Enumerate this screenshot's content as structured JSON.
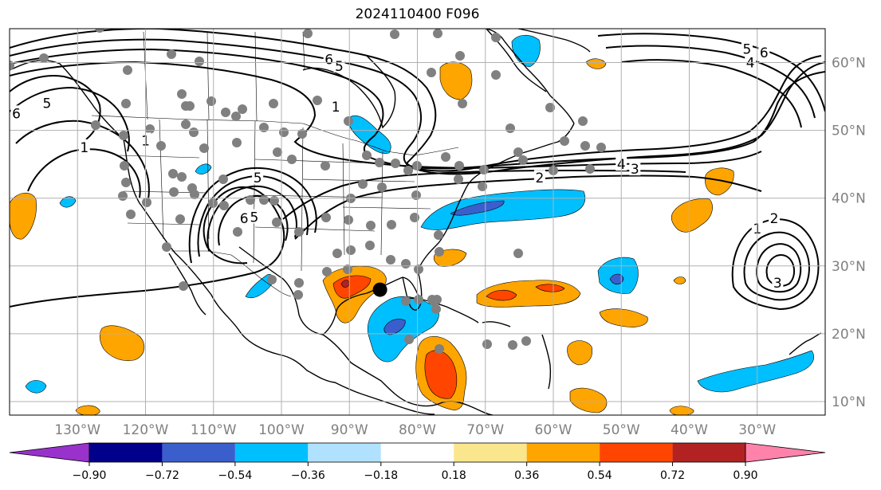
{
  "title": "2024110400 F096",
  "map": {
    "projection": "PlateCarree",
    "lon_range": [
      -140,
      -20
    ],
    "lat_range": [
      8,
      65
    ],
    "lon_ticks": [
      -130,
      -120,
      -110,
      -100,
      -90,
      -80,
      -70,
      -60,
      -50,
      -40,
      -30
    ],
    "lon_labels": [
      "130°W",
      "120°W",
      "110°W",
      "100°W",
      "90°W",
      "80°W",
      "70°W",
      "60°W",
      "50°W",
      "40°W",
      "30°W"
    ],
    "lat_ticks": [
      10,
      20,
      30,
      40,
      50,
      60
    ],
    "lat_labels": [
      "10°N",
      "20°N",
      "30°N",
      "40°N",
      "50°N",
      "60°N"
    ],
    "grid": true,
    "marker": {
      "lon": -85.5,
      "lat": 26.5,
      "color": "#000000"
    },
    "station_dot_color": "#808080",
    "contour_labels": [
      {
        "text": "6",
        "lon": -93,
        "lat": 60.5
      },
      {
        "text": "5",
        "lon": -91.5,
        "lat": 59.5
      },
      {
        "text": "1",
        "lon": -92,
        "lat": 53.5
      },
      {
        "text": "5",
        "lon": -134.5,
        "lat": 54
      },
      {
        "text": "6",
        "lon": -139,
        "lat": 52.5
      },
      {
        "text": "1",
        "lon": -129,
        "lat": 47.5
      },
      {
        "text": "1",
        "lon": -120,
        "lat": 48.5
      },
      {
        "text": "5",
        "lon": -103.5,
        "lat": 43
      },
      {
        "text": "6",
        "lon": -105.5,
        "lat": 37
      },
      {
        "text": "5",
        "lon": -104,
        "lat": 37.2
      },
      {
        "text": "2",
        "lon": -62,
        "lat": 43
      },
      {
        "text": "4",
        "lon": -50,
        "lat": 45
      },
      {
        "text": "3",
        "lon": -48,
        "lat": 44.3
      },
      {
        "text": "5",
        "lon": -31.5,
        "lat": 62
      },
      {
        "text": "6",
        "lon": -29,
        "lat": 61.5
      },
      {
        "text": "4",
        "lon": -31,
        "lat": 60
      },
      {
        "text": "1",
        "lon": -30,
        "lat": 35.5
      },
      {
        "text": "2",
        "lon": -27.5,
        "lat": 37
      },
      {
        "text": "3",
        "lon": -27,
        "lat": 27.5
      }
    ]
  },
  "colorbar": {
    "colors": [
      "#9932cc",
      "#00008b",
      "#3a5fcd",
      "#00bfff",
      "#b0e2ff",
      "#ffffff",
      "#fae68c",
      "#ffa500",
      "#ff4500",
      "#b22222",
      "#ff82ab"
    ],
    "ticks": [
      "−0.90",
      "−0.72",
      "−0.54",
      "−0.36",
      "−0.18",
      "0.18",
      "0.36",
      "0.54",
      "0.72",
      "0.90"
    ]
  }
}
